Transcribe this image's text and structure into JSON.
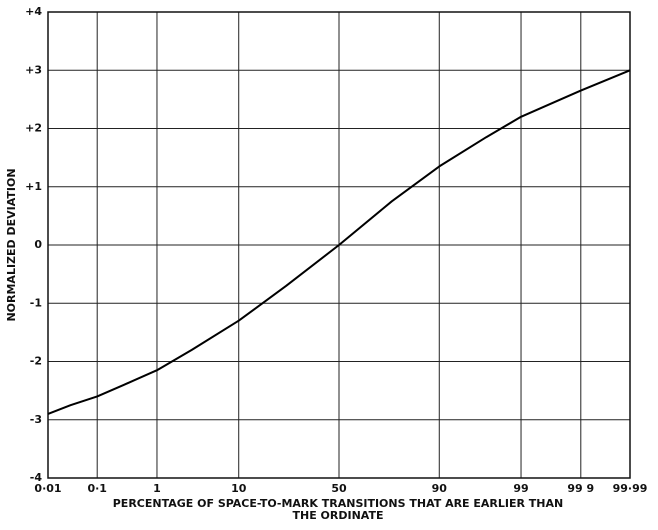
{
  "chart_data": {
    "type": "line",
    "xlabel": [
      "PERCENTAGE OF SPACE-TO-MARK TRANSITIONS THAT ARE EARLIER THAN",
      "THE ORDINATE"
    ],
    "ylabel": "NORMALIZED DEVIATION",
    "xscale": "probit",
    "x": [
      0.01,
      0.03,
      0.1,
      0.3,
      1,
      3,
      10,
      25,
      50,
      75,
      90,
      97,
      99,
      99.7,
      99.9,
      99.99
    ],
    "series": [
      {
        "color": "#000000",
        "values": [
          -2.9,
          -2.75,
          -2.6,
          -2.4,
          -2.15,
          -1.8,
          -1.3,
          -0.7,
          0,
          0.75,
          1.35,
          1.85,
          2.2,
          2.45,
          2.65,
          3.0
        ]
      }
    ],
    "xlim": [
      0.01,
      99.99
    ],
    "xticks": [
      {
        "value": 0.01,
        "label": "0·01"
      },
      {
        "value": 0.1,
        "label": "0·1"
      },
      1,
      10,
      50,
      90,
      99,
      {
        "value": 99.9,
        "label": "99 9"
      },
      {
        "value": 99.99,
        "label": "99·99"
      }
    ],
    "ylim": [
      -4,
      4
    ],
    "yticks": [
      {
        "value": 4,
        "label": "+4"
      },
      {
        "value": 3,
        "label": "+3"
      },
      {
        "value": 2,
        "label": "+2"
      },
      {
        "value": 1,
        "label": "+1"
      },
      0,
      -1,
      -2,
      -3,
      -4
    ],
    "grid": true
  }
}
